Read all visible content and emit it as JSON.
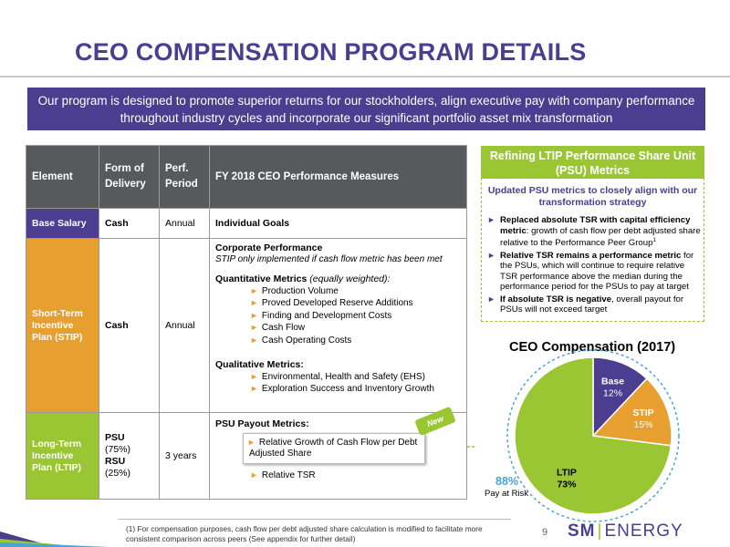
{
  "title": "CEO COMPENSATION PROGRAM DETAILS",
  "banner": "Our program is designed to promote superior returns for our stockholders, align executive pay with company performance throughout industry cycles and incorporate our significant portfolio asset mix transformation",
  "table": {
    "headers": [
      "Element",
      "Form of Delivery",
      "Perf. Period",
      "FY 2018 CEO Performance Measures"
    ],
    "header_form_line1": "Form of",
    "header_form_line2": "Delivery",
    "header_period_line1": "Perf.",
    "header_period_line2": "Period",
    "base": {
      "element": "Base Salary",
      "form": "Cash",
      "period": "Annual",
      "measures": "Individual Goals"
    },
    "stip": {
      "element": "Short-Term Incentive Plan (STIP)",
      "form": "Cash",
      "period": "Annual",
      "corp_heading": "Corporate Performance",
      "corp_note": "STIP only implemented if cash flow metric has been met",
      "quant_heading": "Quantitative Metrics",
      "quant_paren": "(equally weighted):",
      "quant_items": [
        "Production Volume",
        "Proved Developed Reserve Additions",
        "Finding and Development Costs",
        "Cash Flow",
        "Cash Operating Costs"
      ],
      "qual_heading": "Qualitative Metrics:",
      "qual_items": [
        "Environmental, Health and Safety (EHS)",
        "Exploration Success and Inventory Growth"
      ]
    },
    "ltip": {
      "element": "Long-Term Incentive Plan (LTIP)",
      "form_psu": "PSU",
      "form_psu_pct": "(75%)",
      "form_rsu": "RSU",
      "form_rsu_pct": "(25%)",
      "period": "3 years",
      "payout_heading": "PSU Payout Metrics:",
      "item1": "Relative Growth of Cash Flow per Debt Adjusted Share",
      "item2": "Relative TSR",
      "new_tag": "New"
    }
  },
  "refine": {
    "heading": "Refining LTIP Performance Share Unit (PSU) Metrics",
    "subheading": "Updated PSU metrics to closely align with our transformation strategy",
    "b1_bold": "Replaced absolute TSR with capital efficiency metric",
    "b1_rest": ": growth of cash flow per debt adjusted share relative to the Performance Peer Group",
    "b1_sup": "1",
    "b2_bold": "Relative TSR remains a performance metric",
    "b2_rest": " for the PSUs, which will continue to require relative TSR performance above the median during the performance period for the PSUs to pay at target",
    "b3_bold": "If absolute TSR is negative",
    "b3_rest": ", overall payout for PSUs will not exceed target"
  },
  "chart_data": {
    "type": "pie",
    "title": "CEO Compensation (2017)",
    "slices": [
      {
        "label": "Base",
        "value": 12,
        "display": "12%",
        "color": "#4b3d8f"
      },
      {
        "label": "STIP",
        "value": 15,
        "display": "15%",
        "color": "#e7a030"
      },
      {
        "label": "LTIP",
        "value": 73,
        "display": "73%",
        "color": "#9bc633"
      }
    ],
    "annotation_value": "88%",
    "annotation_label": "Pay at Risk"
  },
  "footnote": "(1)   For compensation purposes, cash flow per debt adjusted share calculation is modified to facilitate more consistent comparison across peers (See appendix for further detail)",
  "page_number": "9",
  "logo": {
    "sm": "SM",
    "energy": "ENERGY"
  },
  "colors": {
    "purple": "#4b3d8f",
    "orange": "#e7a030",
    "green": "#9bc633",
    "blue": "#4aa3d8"
  }
}
